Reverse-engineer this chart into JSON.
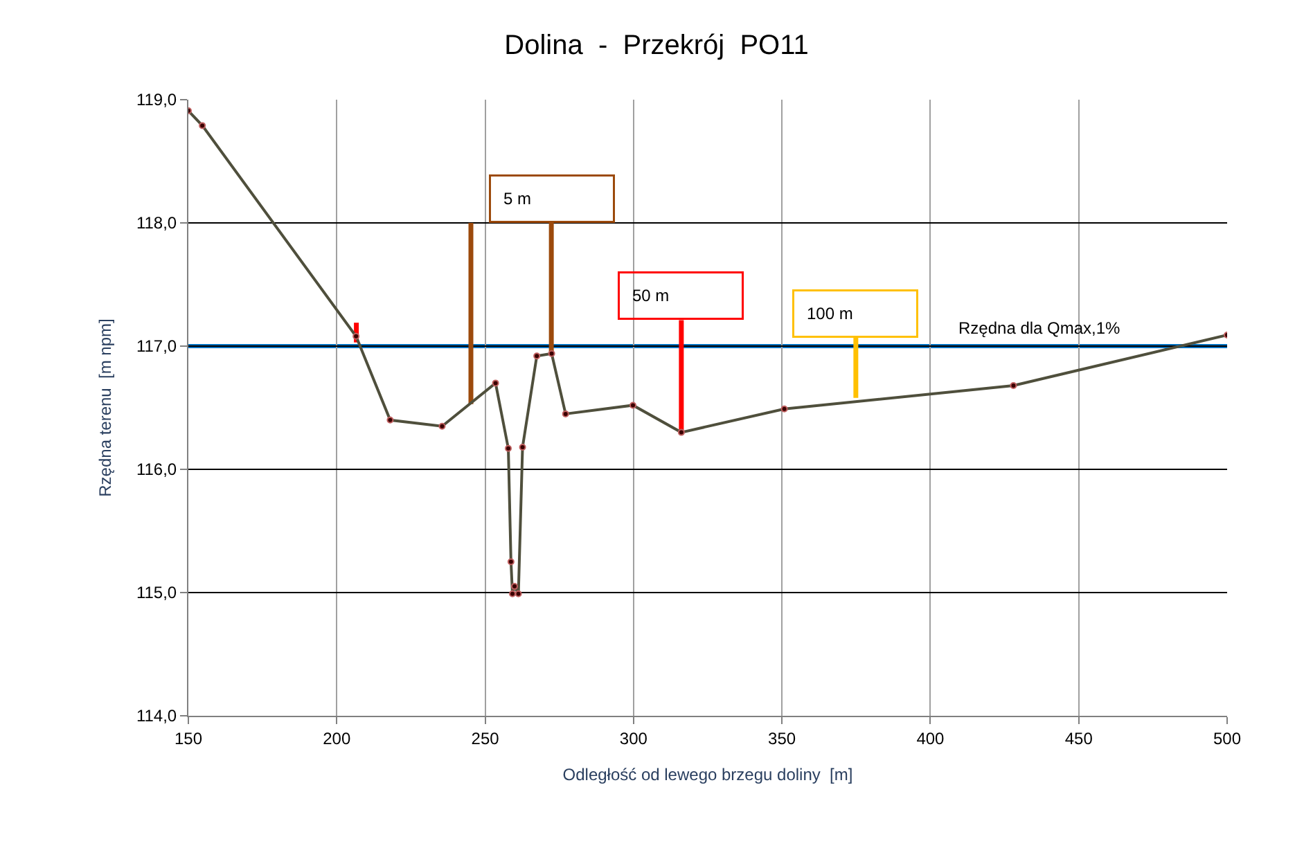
{
  "chart_data": {
    "type": "line",
    "title": "Dolina  -  Przekrój  PO11",
    "xlabel": "Odległość od lewego brzegu doliny  [m]",
    "ylabel": "Rzędna terenu  [m npm]",
    "xlim": [
      150,
      500
    ],
    "xticks": [
      150,
      200,
      250,
      300,
      350,
      400,
      450,
      500
    ],
    "ylim": [
      114,
      119
    ],
    "yticks": [
      {
        "value": 114,
        "label": "114,0"
      },
      {
        "value": 115,
        "label": "115,0"
      },
      {
        "value": 116,
        "label": "116,0"
      },
      {
        "value": 117,
        "label": "117,0"
      },
      {
        "value": 118,
        "label": "118,0"
      },
      {
        "value": 119,
        "label": "119,0"
      }
    ],
    "grid": true,
    "legend": false,
    "series": [
      {
        "color": "#4f4f3c",
        "marker": "circle",
        "x": [
          150,
          154.7,
          206.5,
          218,
          235.5,
          253.5,
          257.8,
          258.7,
          259.2,
          259.9,
          261.2,
          262.6,
          267.4,
          272.4,
          277.1,
          299.8,
          316.1,
          350.8,
          428,
          500
        ],
        "values": [
          118.91,
          118.79,
          117.08,
          116.4,
          116.35,
          116.7,
          116.17,
          115.25,
          114.99,
          115.05,
          114.99,
          116.18,
          116.92,
          116.94,
          116.45,
          116.52,
          116.3,
          116.49,
          116.68,
          117.09
        ]
      },
      {
        "color": "#9c4a0c",
        "marker": "none",
        "x": [
          245.2,
          245.2
        ],
        "values": [
          118.0,
          116.53
        ]
      },
      {
        "name": "5 m",
        "color": "#9c4a0c",
        "marker": "none",
        "x": [
          272.3,
          272.3
        ],
        "values": [
          118.0,
          116.94
        ]
      },
      {
        "color": "#ff0000",
        "marker": "none",
        "x": [
          206.6,
          206.6
        ],
        "values": [
          117.19,
          117.03
        ]
      },
      {
        "name": "50 m",
        "color": "#ff0000",
        "marker": "none",
        "x": [
          316.1,
          316.1
        ],
        "values": [
          117.21,
          116.3
        ]
      },
      {
        "name": "100 m",
        "color": "#ffc000",
        "marker": "none",
        "x": [
          374.9,
          374.9
        ],
        "values": [
          117.07,
          116.58
        ]
      }
    ],
    "ref_lines": [
      {
        "axis": "y",
        "value": 117,
        "label": "Rzędna dla Qmax,1%",
        "color": "#0070c0"
      }
    ]
  }
}
